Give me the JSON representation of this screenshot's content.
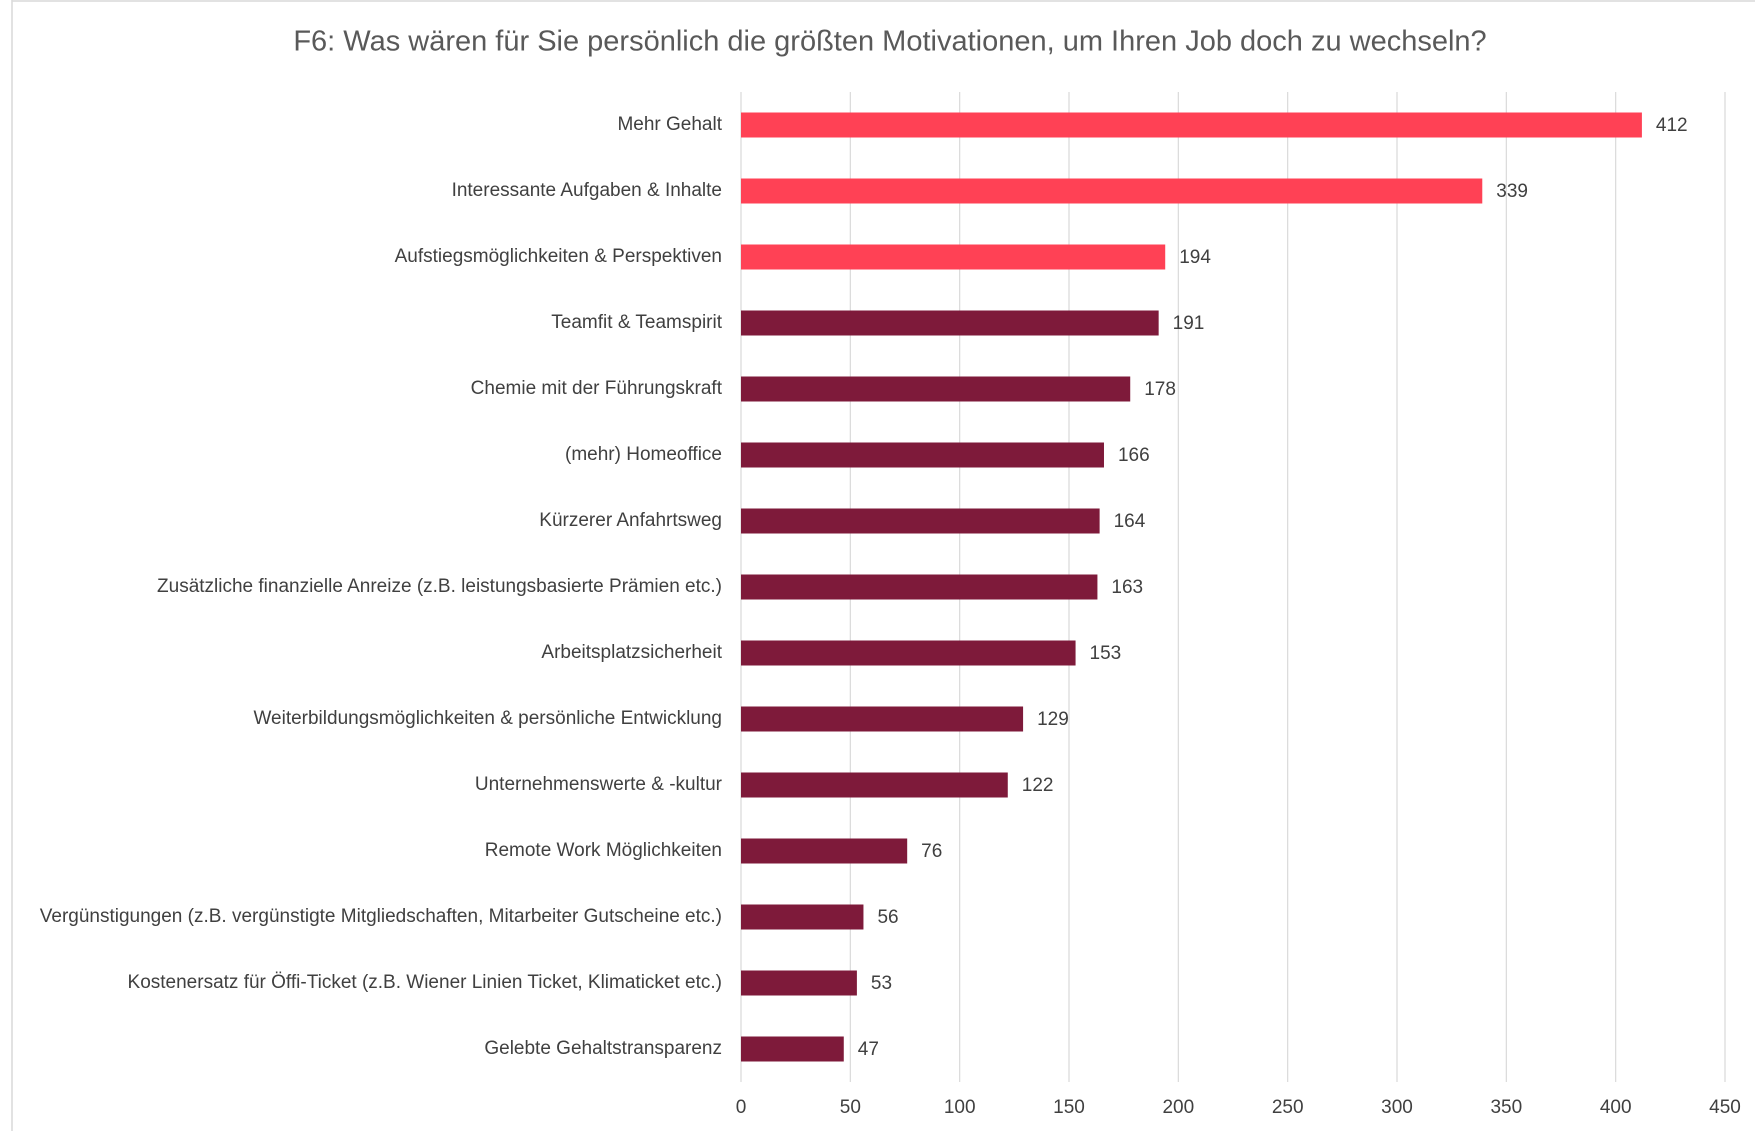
{
  "chart_data": {
    "type": "barh",
    "title": "F6: Was wären für Sie persönlich die größten Motivationen, um Ihren Job doch zu wechseln?",
    "categories": [
      "Mehr Gehalt",
      "Interessante Aufgaben & Inhalte",
      "Aufstiegsmöglichkeiten & Perspektiven",
      "Teamfit & Teamspirit",
      "Chemie mit der Führungskraft",
      "(mehr) Homeoffice",
      "Kürzerer Anfahrtsweg",
      "Zusätzliche finanzielle Anreize (z.B. leistungsbasierte Prämien etc.)",
      "Arbeitsplatzsicherheit",
      "Weiterbildungsmöglichkeiten & persönliche Entwicklung",
      "Unternehmenswerte & -kultur",
      "Remote Work Möglichkeiten",
      "Vergünstigungen (z.B. vergünstigte Mitgliedschaften, Mitarbeiter Gutscheine etc.)",
      "Kostenersatz für Öffi-Ticket (z.B. Wiener Linien Ticket, Klimaticket etc.)",
      "Gelebte Gehaltstransparenz"
    ],
    "values": [
      412,
      339,
      194,
      191,
      178,
      166,
      164,
      163,
      153,
      129,
      122,
      76,
      56,
      53,
      47
    ],
    "colors": [
      "#ff4155",
      "#ff4155",
      "#ff4155",
      "#7e1a3a",
      "#7e1a3a",
      "#7e1a3a",
      "#7e1a3a",
      "#7e1a3a",
      "#7e1a3a",
      "#7e1a3a",
      "#7e1a3a",
      "#7e1a3a",
      "#7e1a3a",
      "#7e1a3a",
      "#7e1a3a"
    ],
    "xlim": [
      0,
      450
    ],
    "xticks": [
      0,
      50,
      100,
      150,
      200,
      250,
      300,
      350,
      400,
      450
    ],
    "grid": true
  }
}
